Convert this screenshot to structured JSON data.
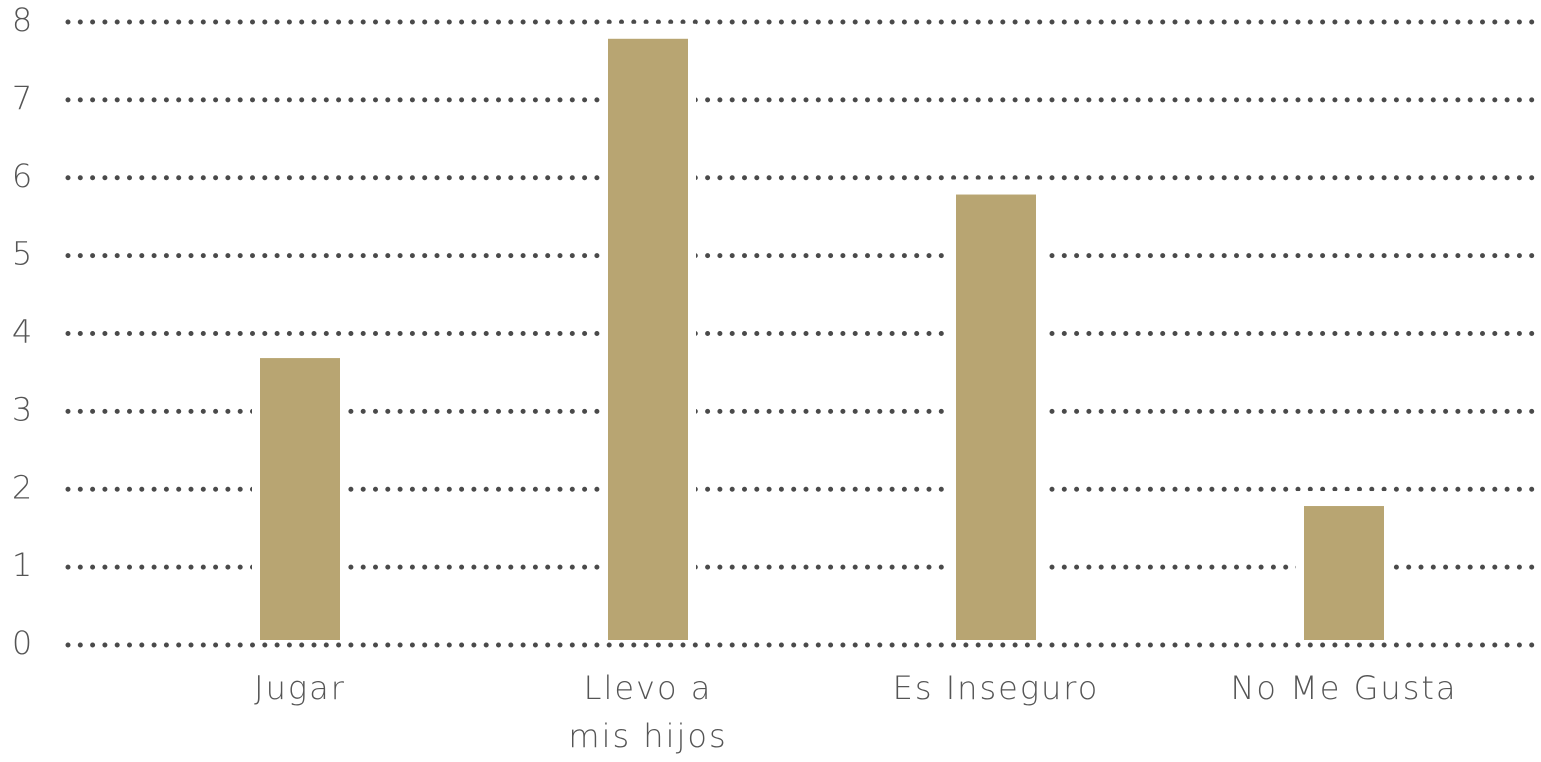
{
  "chart_data": {
    "type": "bar",
    "categories": [
      "Jugar",
      "Llevo a mis hijos",
      "Es Inseguro",
      "No Me Gusta"
    ],
    "values": [
      3.8,
      7.9,
      5.9,
      1.9
    ],
    "color": "#b8a572",
    "ylim": [
      0,
      8
    ],
    "yticks": [
      0,
      1,
      2,
      3,
      4,
      5,
      6,
      7,
      8
    ],
    "grid": true
  }
}
